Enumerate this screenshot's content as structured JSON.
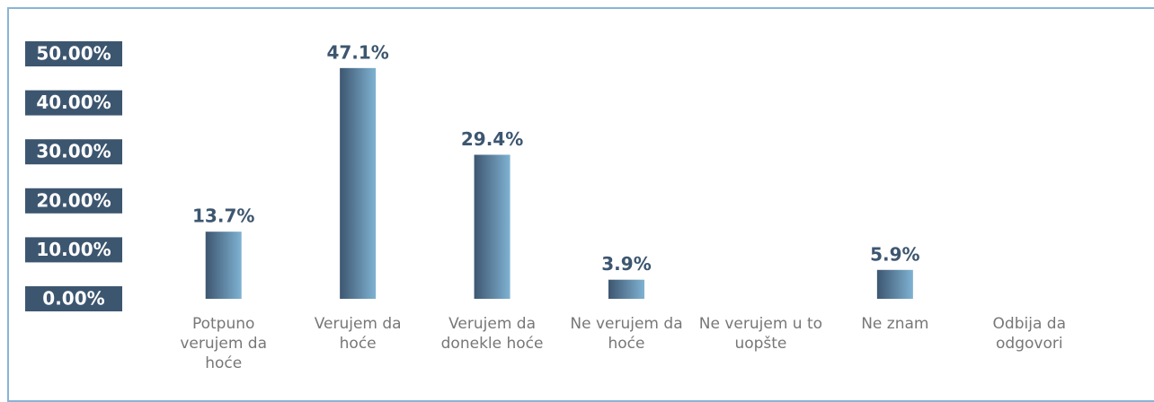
{
  "chart_data": {
    "type": "bar",
    "categories": [
      "Potpuno verujem da hoće",
      "Verujem da hoće",
      "Verujem da donekle hoće",
      "Ne verujem da hoće",
      "Ne verujem u to uopšte",
      "Ne znam",
      "Odbija da odgovori"
    ],
    "values": [
      13.7,
      47.1,
      29.4,
      3.9,
      null,
      5.9,
      null
    ],
    "value_labels": [
      "13.7%",
      "47.1%",
      "29.4%",
      "3.9%",
      null,
      "5.9%",
      null
    ],
    "color": "#3d5670",
    "ylim": [
      0,
      50
    ],
    "yticks": [
      {
        "value": 0,
        "label": "0.00%"
      },
      {
        "value": 10,
        "label": "10.00%"
      },
      {
        "value": 20,
        "label": "20.00%"
      },
      {
        "value": 30,
        "label": "30.00%"
      },
      {
        "value": 40,
        "label": "40.00%"
      },
      {
        "value": 50,
        "label": "50.00%"
      }
    ],
    "grid": false
  }
}
